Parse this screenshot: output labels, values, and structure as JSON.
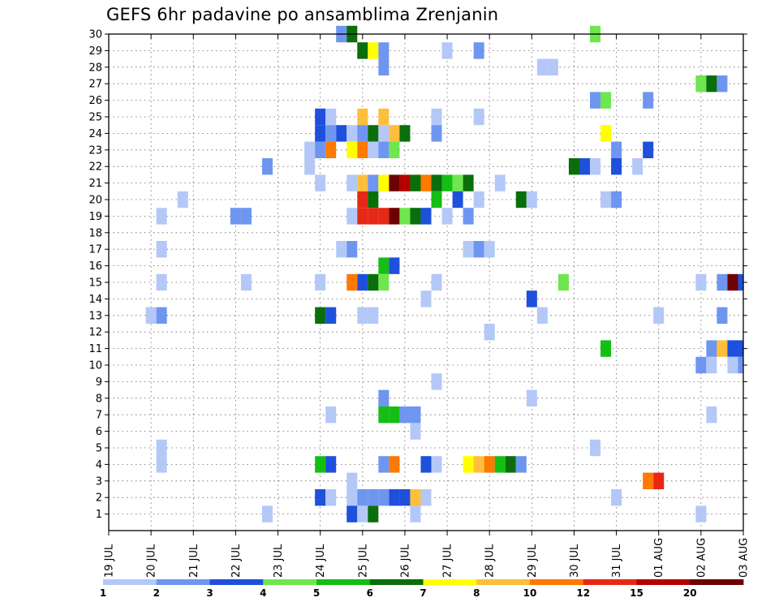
{
  "title": "GEFS 6hr padavine po ansamblima Zrenjanin",
  "chart_data": {
    "type": "heatmap",
    "title": "GEFS 6hr padavine po ansamblima Zrenjanin",
    "xlabel": "",
    "ylabel": "",
    "grid": true,
    "legend_position": "bottom",
    "x_ticks": [
      "19 JUL",
      "20 JUL",
      "21 JUL",
      "22 JUL",
      "23 JUL",
      "24 JUL",
      "25 JUL",
      "26 JUL",
      "27 JUL",
      "28 JUL",
      "29 JUL",
      "30 JUL",
      "31 JUL",
      "01 AUG",
      "02 AUG",
      "03 AUG"
    ],
    "y_ticks": [
      1,
      2,
      3,
      4,
      5,
      6,
      7,
      8,
      9,
      10,
      11,
      12,
      13,
      14,
      15,
      16,
      17,
      18,
      19,
      20,
      21,
      22,
      23,
      24,
      25,
      26,
      27,
      28,
      29,
      30
    ],
    "x_range_days": [
      0,
      15
    ],
    "y_range": [
      0,
      30
    ],
    "legend_levels": [
      "1",
      "2",
      "3",
      "4",
      "5",
      "6",
      "7",
      "8",
      "10",
      "12",
      "15",
      "20"
    ],
    "colors": [
      "#b4c8f8",
      "#6e96f0",
      "#1e50dc",
      "#6ee650",
      "#14be14",
      "#0a6e0a",
      "#ffff00",
      "#ffbe3c",
      "#ff7800",
      "#e62814",
      "#b40000",
      "#6e0000"
    ],
    "cells": [
      [
        5.5,
        30,
        1
      ],
      [
        5.75,
        30,
        5
      ],
      [
        11.5,
        30,
        3
      ],
      [
        6.0,
        29,
        5
      ],
      [
        6.25,
        29,
        6
      ],
      [
        6.5,
        29,
        1
      ],
      [
        8.0,
        29,
        0
      ],
      [
        8.75,
        29,
        1
      ],
      [
        6.5,
        28,
        1
      ],
      [
        10.25,
        28,
        0
      ],
      [
        10.5,
        28,
        0
      ],
      [
        14.0,
        27,
        3
      ],
      [
        14.25,
        27,
        5
      ],
      [
        14.5,
        27,
        1
      ],
      [
        11.5,
        26,
        1
      ],
      [
        11.75,
        26,
        3
      ],
      [
        12.75,
        26,
        1
      ],
      [
        5.0,
        25,
        2
      ],
      [
        5.25,
        25,
        0
      ],
      [
        6.0,
        25,
        7
      ],
      [
        6.5,
        25,
        7
      ],
      [
        7.75,
        25,
        0
      ],
      [
        8.75,
        25,
        0
      ],
      [
        5.0,
        24,
        2
      ],
      [
        5.25,
        24,
        1
      ],
      [
        5.5,
        24,
        2
      ],
      [
        5.75,
        24,
        0
      ],
      [
        6.0,
        24,
        1
      ],
      [
        6.25,
        24,
        5
      ],
      [
        6.5,
        24,
        0
      ],
      [
        6.75,
        24,
        7
      ],
      [
        7.0,
        24,
        5
      ],
      [
        7.75,
        24,
        1
      ],
      [
        11.75,
        24,
        6
      ],
      [
        4.75,
        23,
        0
      ],
      [
        5.0,
        23,
        1
      ],
      [
        5.25,
        23,
        8
      ],
      [
        5.75,
        23,
        6
      ],
      [
        6.0,
        23,
        8
      ],
      [
        6.25,
        23,
        0
      ],
      [
        6.5,
        23,
        1
      ],
      [
        6.75,
        23,
        3
      ],
      [
        12.0,
        23,
        1
      ],
      [
        12.75,
        23,
        2
      ],
      [
        3.75,
        22,
        1
      ],
      [
        4.75,
        22,
        0
      ],
      [
        11.0,
        22,
        5
      ],
      [
        11.25,
        22,
        2
      ],
      [
        11.5,
        22,
        0
      ],
      [
        12.0,
        22,
        2
      ],
      [
        12.5,
        22,
        0
      ],
      [
        5.0,
        21,
        0
      ],
      [
        5.75,
        21,
        0
      ],
      [
        6.0,
        21,
        7
      ],
      [
        6.25,
        21,
        1
      ],
      [
        6.5,
        21,
        6
      ],
      [
        6.75,
        21,
        11
      ],
      [
        7.0,
        21,
        10
      ],
      [
        7.25,
        21,
        5
      ],
      [
        7.5,
        21,
        8
      ],
      [
        7.75,
        21,
        5
      ],
      [
        8.0,
        21,
        4
      ],
      [
        8.25,
        21,
        3
      ],
      [
        8.5,
        21,
        5
      ],
      [
        9.25,
        21,
        0
      ],
      [
        1.75,
        20,
        0
      ],
      [
        6.0,
        20,
        9
      ],
      [
        6.25,
        20,
        5
      ],
      [
        7.75,
        20,
        4
      ],
      [
        8.25,
        20,
        2
      ],
      [
        8.75,
        20,
        0
      ],
      [
        9.75,
        20,
        5
      ],
      [
        10.0,
        20,
        0
      ],
      [
        11.75,
        20,
        0
      ],
      [
        12.0,
        20,
        1
      ],
      [
        1.25,
        19,
        0
      ],
      [
        3.0,
        19,
        1
      ],
      [
        3.25,
        19,
        1
      ],
      [
        5.75,
        19,
        0
      ],
      [
        6.0,
        19,
        9
      ],
      [
        6.25,
        19,
        9
      ],
      [
        6.5,
        19,
        9
      ],
      [
        6.75,
        19,
        11
      ],
      [
        7.0,
        19,
        3
      ],
      [
        7.25,
        19,
        5
      ],
      [
        7.5,
        19,
        2
      ],
      [
        8.0,
        19,
        0
      ],
      [
        8.5,
        19,
        1
      ],
      [
        1.25,
        17,
        0
      ],
      [
        5.5,
        17,
        0
      ],
      [
        5.75,
        17,
        1
      ],
      [
        8.5,
        17,
        0
      ],
      [
        8.75,
        17,
        1
      ],
      [
        9.0,
        17,
        0
      ],
      [
        6.5,
        16,
        4
      ],
      [
        6.75,
        16,
        2
      ],
      [
        1.25,
        15,
        0
      ],
      [
        3.25,
        15,
        0
      ],
      [
        5.0,
        15,
        0
      ],
      [
        5.75,
        15,
        8
      ],
      [
        6.0,
        15,
        2
      ],
      [
        6.25,
        15,
        5
      ],
      [
        6.5,
        15,
        3
      ],
      [
        7.75,
        15,
        0
      ],
      [
        10.75,
        15,
        3
      ],
      [
        14.0,
        15,
        0
      ],
      [
        14.5,
        15,
        1
      ],
      [
        14.75,
        15,
        11
      ],
      [
        15.0,
        15,
        2
      ],
      [
        7.5,
        14,
        0
      ],
      [
        10.0,
        14,
        2
      ],
      [
        1.0,
        13,
        0
      ],
      [
        1.25,
        13,
        1
      ],
      [
        5.0,
        13,
        5
      ],
      [
        5.25,
        13,
        2
      ],
      [
        6.0,
        13,
        0
      ],
      [
        6.25,
        13,
        0
      ],
      [
        10.25,
        13,
        0
      ],
      [
        13.0,
        13,
        0
      ],
      [
        14.5,
        13,
        1
      ],
      [
        9.0,
        12,
        0
      ],
      [
        11.75,
        11,
        4
      ],
      [
        14.25,
        11,
        1
      ],
      [
        14.5,
        11,
        7
      ],
      [
        14.75,
        11,
        2
      ],
      [
        15.0,
        11,
        2
      ],
      [
        14.0,
        10,
        1
      ],
      [
        14.25,
        10,
        0
      ],
      [
        14.75,
        10,
        0
      ],
      [
        15.0,
        10,
        1
      ],
      [
        7.75,
        9,
        0
      ],
      [
        6.5,
        8,
        1
      ],
      [
        10.0,
        8,
        0
      ],
      [
        5.25,
        7,
        0
      ],
      [
        6.5,
        7,
        4
      ],
      [
        6.75,
        7,
        4
      ],
      [
        7.0,
        7,
        1
      ],
      [
        7.25,
        7,
        1
      ],
      [
        14.25,
        7,
        0
      ],
      [
        7.25,
        6,
        0
      ],
      [
        1.25,
        5,
        0
      ],
      [
        11.5,
        5,
        0
      ],
      [
        1.25,
        4,
        0
      ],
      [
        5.0,
        4,
        4
      ],
      [
        5.25,
        4,
        2
      ],
      [
        6.5,
        4,
        1
      ],
      [
        6.75,
        4,
        8
      ],
      [
        7.5,
        4,
        2
      ],
      [
        7.75,
        4,
        0
      ],
      [
        8.5,
        4,
        6
      ],
      [
        8.75,
        4,
        7
      ],
      [
        9.0,
        4,
        8
      ],
      [
        9.25,
        4,
        4
      ],
      [
        9.5,
        4,
        5
      ],
      [
        9.75,
        4,
        1
      ],
      [
        5.75,
        3,
        0
      ],
      [
        12.75,
        3,
        8
      ],
      [
        13.0,
        3,
        9
      ],
      [
        5.0,
        2,
        2
      ],
      [
        5.25,
        2,
        0
      ],
      [
        5.75,
        2,
        0
      ],
      [
        6.0,
        2,
        1
      ],
      [
        6.25,
        2,
        1
      ],
      [
        6.5,
        2,
        1
      ],
      [
        6.75,
        2,
        2
      ],
      [
        7.0,
        2,
        2
      ],
      [
        7.25,
        2,
        7
      ],
      [
        7.5,
        2,
        0
      ],
      [
        12.0,
        2,
        0
      ],
      [
        3.75,
        1,
        0
      ],
      [
        5.75,
        1,
        2
      ],
      [
        6.0,
        1,
        0
      ],
      [
        6.25,
        1,
        5
      ],
      [
        7.25,
        1,
        0
      ],
      [
        14.0,
        1,
        0
      ]
    ]
  }
}
